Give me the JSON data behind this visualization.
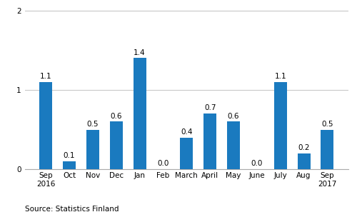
{
  "categories": [
    "Sep\n2016",
    "Oct",
    "Nov",
    "Dec",
    "Jan",
    "Feb",
    "March",
    "April",
    "May",
    "June",
    "July",
    "Aug",
    "Sep\n2017"
  ],
  "values": [
    1.1,
    0.1,
    0.5,
    0.6,
    1.4,
    0.0,
    0.4,
    0.7,
    0.6,
    0.0,
    1.1,
    0.2,
    0.5
  ],
  "bar_color_hex": "#1a7abf",
  "ylim": [
    0,
    2.05
  ],
  "yticks": [
    0,
    1,
    2
  ],
  "source_text": "Source: Statistics Finland",
  "bar_width": 0.55,
  "tick_fontsize": 7.5,
  "source_fontsize": 7.5,
  "value_label_fontsize": 7.5,
  "background_color": "#ffffff",
  "grid_color": "#c8c8c8"
}
